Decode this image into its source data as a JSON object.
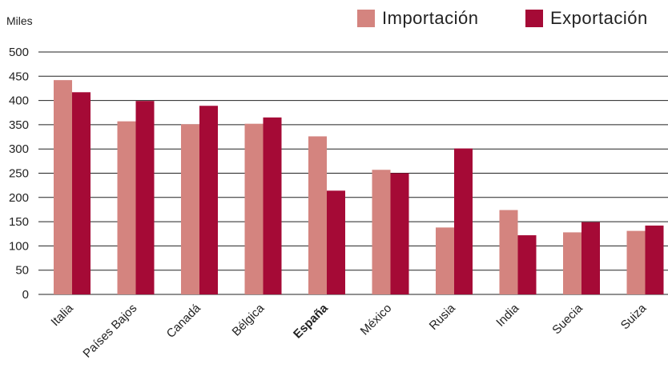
{
  "chart_data": {
    "type": "bar",
    "unit_label": "Miles",
    "categories": [
      "Italia",
      "Países Bajos",
      "Canadá",
      "Bélgica",
      "España",
      "México",
      "Rusia",
      "India",
      "Suecia",
      "Suiza"
    ],
    "highlight_category": "España",
    "series": [
      {
        "name": "Importación",
        "color": "#d4847f",
        "values": [
          442,
          357,
          351,
          352,
          326,
          257,
          138,
          174,
          128,
          131
        ]
      },
      {
        "name": "Exportación",
        "color": "#a50a36",
        "values": [
          417,
          399,
          389,
          365,
          214,
          250,
          301,
          122,
          149,
          142
        ]
      }
    ],
    "ylim": [
      0,
      500
    ],
    "yticks": [
      0,
      50,
      100,
      150,
      200,
      250,
      300,
      350,
      400,
      450,
      500
    ],
    "grid": true,
    "legend_position": "top-right"
  }
}
